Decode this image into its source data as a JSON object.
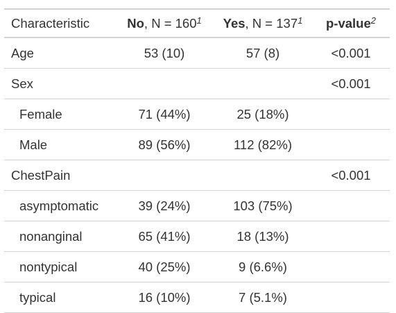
{
  "table": {
    "headers": {
      "characteristic": "Characteristic",
      "no_name": "No",
      "no_n": ", N = 160",
      "no_footnote": "1",
      "yes_name": "Yes",
      "yes_n": ", N = 137",
      "yes_footnote": "1",
      "pvalue": "p-value",
      "pvalue_footnote": "2"
    },
    "rows": [
      {
        "label": "Age",
        "no": "53 (10)",
        "yes": "57 (8)",
        "p": "<0.001",
        "level": false
      },
      {
        "label": "Sex",
        "no": "",
        "yes": "",
        "p": "<0.001",
        "level": false
      },
      {
        "label": "Female",
        "no": "71 (44%)",
        "yes": "25 (18%)",
        "p": "",
        "level": true
      },
      {
        "label": "Male",
        "no": "89 (56%)",
        "yes": "112 (82%)",
        "p": "",
        "level": true
      },
      {
        "label": "ChestPain",
        "no": "",
        "yes": "",
        "p": "<0.001",
        "level": false
      },
      {
        "label": "asymptomatic",
        "no": "39 (24%)",
        "yes": "103 (75%)",
        "p": "",
        "level": true
      },
      {
        "label": "nonanginal",
        "no": "65 (41%)",
        "yes": "18 (13%)",
        "p": "",
        "level": true
      },
      {
        "label": "nontypical",
        "no": "40 (25%)",
        "yes": "9 (6.6%)",
        "p": "",
        "level": true
      },
      {
        "label": "typical",
        "no": "16 (10%)",
        "yes": "7 (5.1%)",
        "p": "",
        "level": true
      }
    ]
  }
}
